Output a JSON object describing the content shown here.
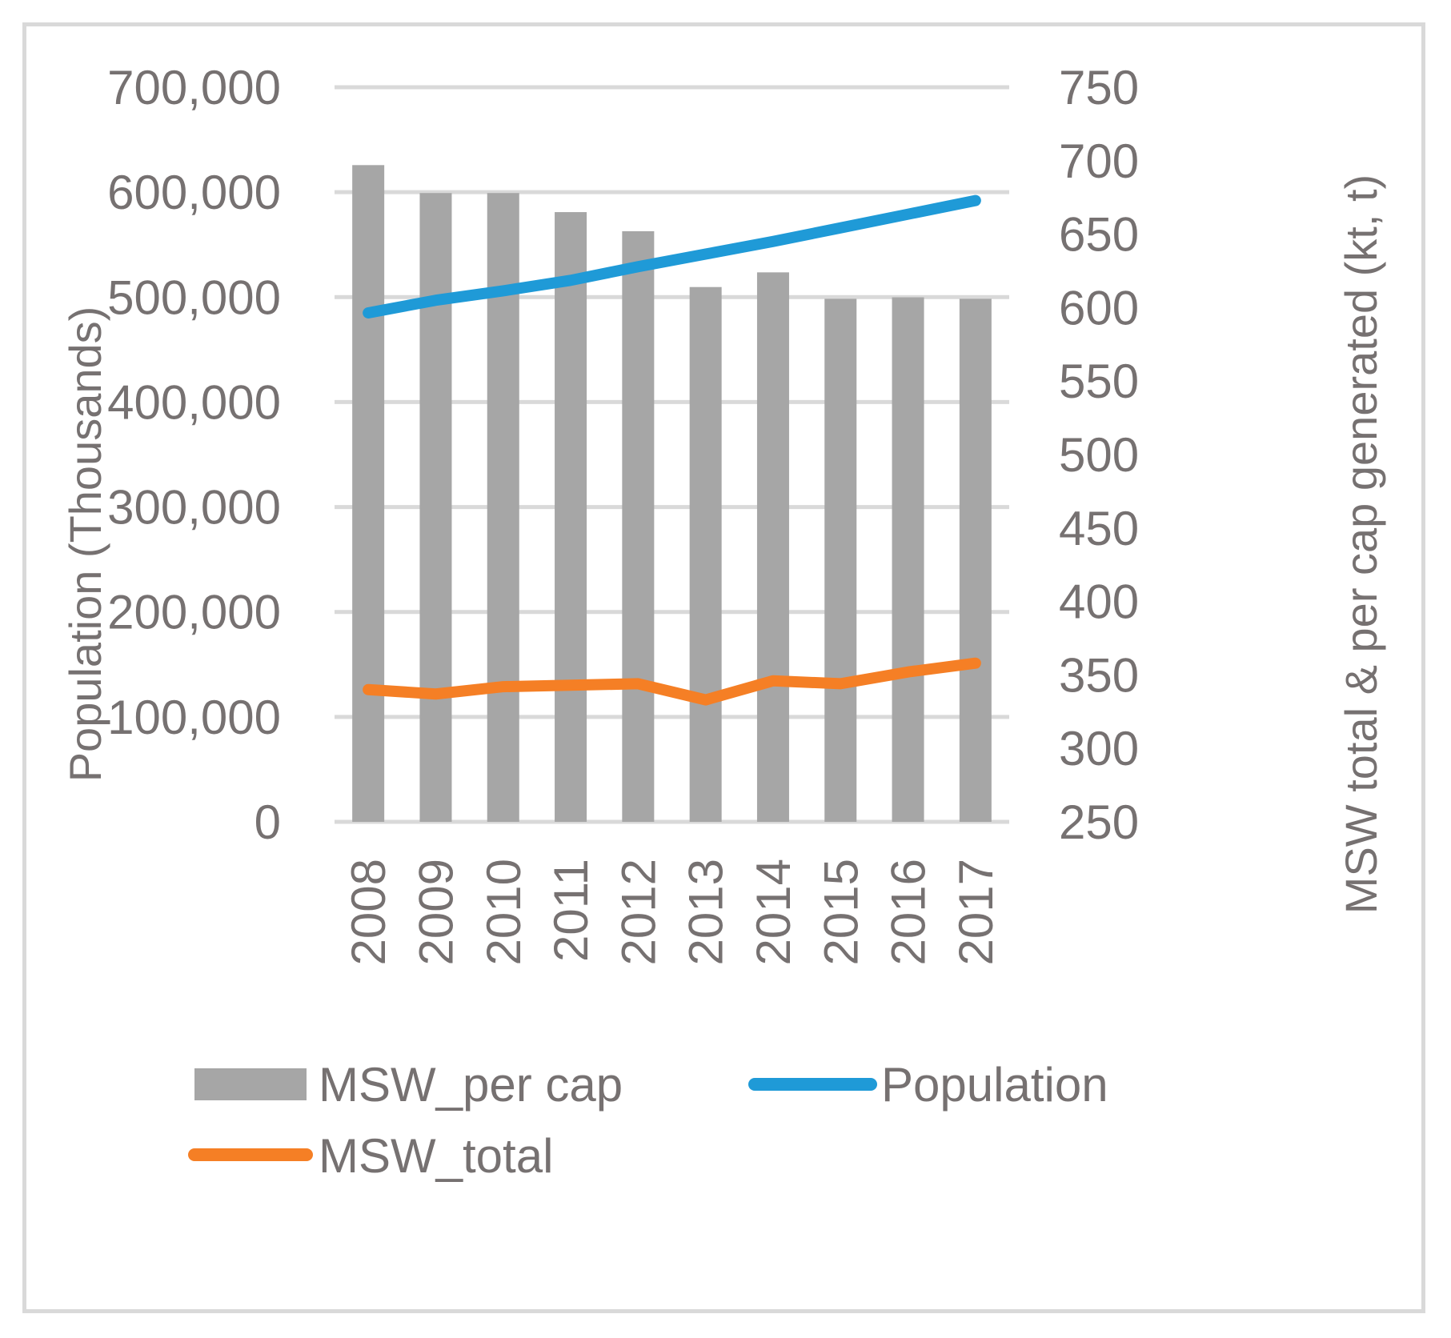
{
  "chart_data": {
    "type": "bar",
    "title": "",
    "categories": [
      "2008",
      "2009",
      "2010",
      "2011",
      "2012",
      "2013",
      "2014",
      "2015",
      "2016",
      "2017"
    ],
    "series": [
      {
        "name": "MSW_per cap",
        "kind": "bar",
        "axis": "right",
        "color": "#a6a6a6",
        "values": [
          697,
          678,
          678,
          665,
          652,
          614,
          624,
          606,
          607,
          606
        ]
      },
      {
        "name": "Population",
        "kind": "line",
        "axis": "left",
        "color": "#1f9ad7",
        "values": [
          485000,
          497000,
          506000,
          516000,
          529000,
          541000,
          553000,
          566000,
          579000,
          592000
        ]
      },
      {
        "name": "MSW_total",
        "kind": "line",
        "axis": "right",
        "color": "#f57f25",
        "values": [
          340,
          337,
          342,
          343,
          344,
          333,
          346,
          344,
          352,
          358
        ]
      }
    ],
    "left_axis": {
      "label": "Population (Thousands)",
      "range": [
        0,
        700000
      ],
      "ticks": [
        0,
        100000,
        200000,
        300000,
        400000,
        500000,
        600000,
        700000
      ],
      "tick_labels": [
        "0",
        "100,000",
        "200,000",
        "300,000",
        "400,000",
        "500,000",
        "600,000",
        "700,000"
      ]
    },
    "right_axis": {
      "label": "MSW total & per cap generated (kt, t)",
      "range": [
        250,
        750
      ],
      "ticks": [
        250,
        300,
        350,
        400,
        450,
        500,
        550,
        600,
        650,
        700,
        750
      ],
      "tick_labels": [
        "250",
        "300",
        "350",
        "400",
        "450",
        "500",
        "550",
        "600",
        "650",
        "700",
        "750"
      ]
    },
    "grid": true,
    "legend": {
      "position": "bottom",
      "entries": [
        "MSW_per cap",
        "Population",
        "MSW_total"
      ]
    }
  }
}
